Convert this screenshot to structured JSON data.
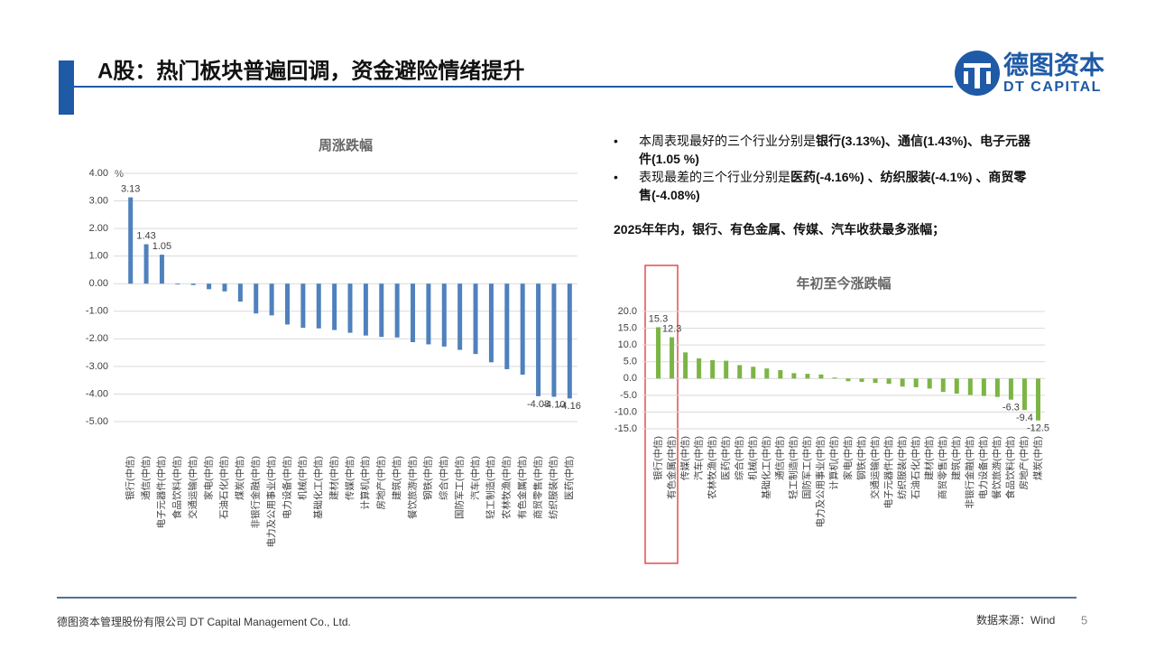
{
  "header": {
    "title": "A股：热门板块普遍回调，资金避险情绪提升",
    "logo_cn": "德图资本",
    "logo_en": "DT CAPITAL"
  },
  "bullets": [
    {
      "text": "本周表现最好的三个行业分别是",
      "bold_text": "银行(3.13%)、通信(1.43%)、电子元器件(1.05 %)"
    },
    {
      "text": "表现最差的三个行业分别是",
      "bold_text": "医药(-4.16%) 、纺织服装(-4.1%) 、商贸零售(-4.08%)"
    }
  ],
  "summary": "2025年年内，银行、有色金属、传媒、汽车收获最多涨幅；",
  "footer": {
    "company": "德图资本管理股份有限公司 DT Capital Management Co., Ltd.",
    "source": "数据来源：Wind",
    "page": "5"
  },
  "chart_data": [
    {
      "type": "bar",
      "title": "周涨跌幅",
      "y_unit": "%",
      "color": "#4f81bd",
      "grid": true,
      "categories": [
        "银行(中信)",
        "通信(中信)",
        "电子元器件(中信)",
        "食品饮料(中信)",
        "交通运输(中信)",
        "家电(中信)",
        "石油石化(中信)",
        "煤炭(中信)",
        "非银行金融(中信)",
        "电力及公用事业(中信)",
        "电力设备(中信)",
        "机械(中信)",
        "基础化工(中信)",
        "建材(中信)",
        "传媒(中信)",
        "计算机(中信)",
        "房地产(中信)",
        "建筑(中信)",
        "餐饮旅游(中信)",
        "钢铁(中信)",
        "综合(中信)",
        "国防军工(中信)",
        "汽车(中信)",
        "轻工制造(中信)",
        "农林牧渔(中信)",
        "有色金属(中信)",
        "商贸零售(中信)",
        "纺织服装(中信)",
        "医药(中信)"
      ],
      "values": [
        3.13,
        1.43,
        1.05,
        -0.03,
        -0.05,
        -0.2,
        -0.28,
        -0.65,
        -1.08,
        -1.15,
        -1.48,
        -1.6,
        -1.62,
        -1.68,
        -1.78,
        -1.88,
        -1.93,
        -1.95,
        -2.12,
        -2.2,
        -2.28,
        -2.4,
        -2.55,
        -2.85,
        -3.1,
        -3.3,
        -4.08,
        -4.1,
        -4.16
      ],
      "value_labels": [
        "3.13",
        "1.43",
        "1.05",
        null,
        null,
        null,
        null,
        null,
        null,
        null,
        null,
        null,
        null,
        null,
        null,
        null,
        null,
        null,
        null,
        null,
        null,
        null,
        null,
        null,
        null,
        null,
        "-4.08",
        "-4.10",
        "-4.16"
      ],
      "ylim": [
        -5,
        4
      ],
      "yticks": [
        {
          "value": 4,
          "label": "4.00"
        },
        {
          "value": 3,
          "label": "3.00"
        },
        {
          "value": 2,
          "label": "2.00"
        },
        {
          "value": 1,
          "label": "1.00"
        },
        {
          "value": 0,
          "label": "0.00"
        },
        {
          "value": -1,
          "label": "-1.00"
        },
        {
          "value": -2,
          "label": "-2.00"
        },
        {
          "value": -3,
          "label": "-3.00"
        },
        {
          "value": -4,
          "label": "-4.00"
        },
        {
          "value": -5,
          "label": "-5.00"
        }
      ]
    },
    {
      "type": "bar",
      "title": "年初至今涨跌幅",
      "color": "#7cb545",
      "grid": true,
      "categories": [
        "银行(中信)",
        "有色金属(中信)",
        "传媒(中信)",
        "汽车(中信)",
        "农林牧渔(中信)",
        "医药(中信)",
        "综合(中信)",
        "机械(中信)",
        "基础化工(中信)",
        "通信(中信)",
        "轻工制造(中信)",
        "国防军工(中信)",
        "电力及公用事业(中信)",
        "计算机(中信)",
        "家电(中信)",
        "钢铁(中信)",
        "交通运输(中信)",
        "电子元器件(中信)",
        "纺织服装(中信)",
        "石油石化(中信)",
        "建材(中信)",
        "商贸零售(中信)",
        "建筑(中信)",
        "非银行金融(中信)",
        "电力设备(中信)",
        "餐饮旅游(中信)",
        "食品饮料(中信)",
        "房地产(中信)",
        "煤炭(中信)"
      ],
      "values": [
        15.3,
        12.3,
        7.8,
        6.0,
        5.5,
        5.3,
        4.0,
        3.5,
        3.0,
        2.5,
        1.6,
        1.4,
        1.2,
        0.3,
        -0.8,
        -1.0,
        -1.3,
        -1.6,
        -2.4,
        -2.6,
        -3.0,
        -4.0,
        -4.5,
        -4.9,
        -5.2,
        -5.5,
        -6.3,
        -9.4,
        -12.5
      ],
      "value_labels": [
        "15.3",
        "12.3",
        null,
        null,
        null,
        null,
        null,
        null,
        null,
        null,
        null,
        null,
        null,
        null,
        null,
        null,
        null,
        null,
        null,
        null,
        null,
        null,
        null,
        null,
        null,
        null,
        "-6.3",
        "-9.4",
        "-12.5"
      ],
      "ylim": [
        -15,
        20
      ],
      "yticks": [
        {
          "value": 20,
          "label": "20.0"
        },
        {
          "value": 15,
          "label": "15.0"
        },
        {
          "value": 10,
          "label": "10.0"
        },
        {
          "value": 5,
          "label": "5.0"
        },
        {
          "value": 0,
          "label": "0.0"
        },
        {
          "value": -5,
          "label": "-5.0"
        },
        {
          "value": -10,
          "label": "-10.0"
        },
        {
          "value": -15,
          "label": "-15.0"
        }
      ]
    }
  ]
}
